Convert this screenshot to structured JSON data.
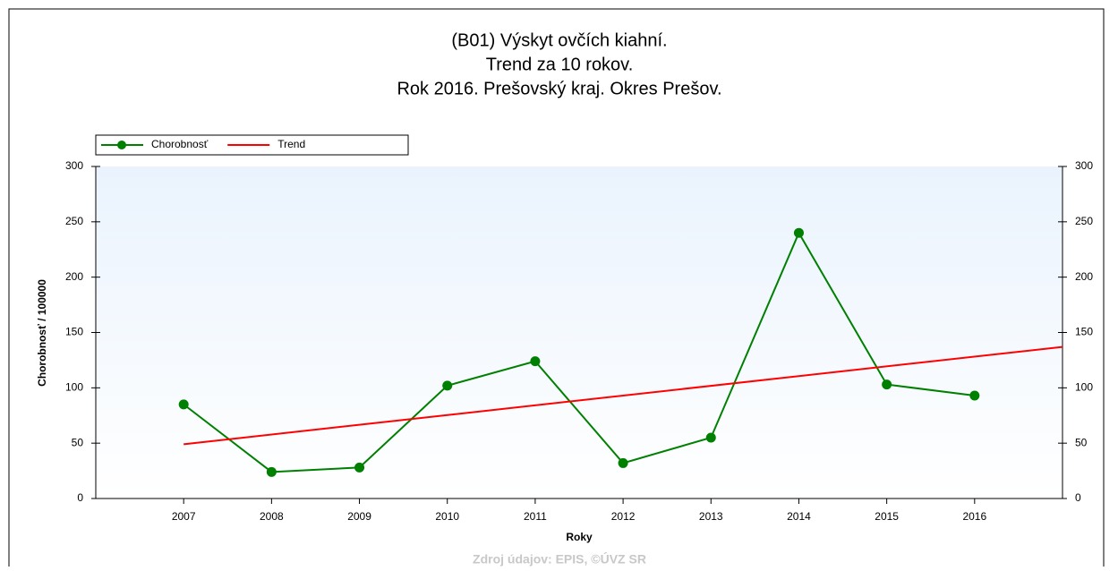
{
  "chart_data": {
    "type": "line",
    "title": [
      "(B01) Výskyt ovčích kiahní.",
      "Trend za 10 rokov.",
      "Rok 2016. Prešovský kraj. Okres Prešov."
    ],
    "xlabel": "Roky",
    "ylabel": "Chorobnosť / 100000",
    "source": "Zdroj údajov: EPIS, ©ÚVZ SR",
    "xlim": [
      2006,
      2017
    ],
    "xticks": [
      2007,
      2008,
      2009,
      2010,
      2011,
      2012,
      2013,
      2014,
      2015,
      2016
    ],
    "ylim": [
      0,
      300
    ],
    "yticks": [
      0,
      50,
      100,
      150,
      200,
      250,
      300
    ],
    "series": [
      {
        "name": "Chorobnosť",
        "color": "#008000",
        "markers": true,
        "x": [
          2007,
          2008,
          2009,
          2010,
          2011,
          2012,
          2013,
          2014,
          2015,
          2016
        ],
        "values": [
          85,
          24,
          28,
          102,
          124,
          32,
          55,
          240,
          103,
          93
        ]
      },
      {
        "name": "Trend",
        "color": "#ff0000",
        "markers": false,
        "x": [
          2007,
          2017
        ],
        "values": [
          49,
          137
        ]
      }
    ]
  }
}
